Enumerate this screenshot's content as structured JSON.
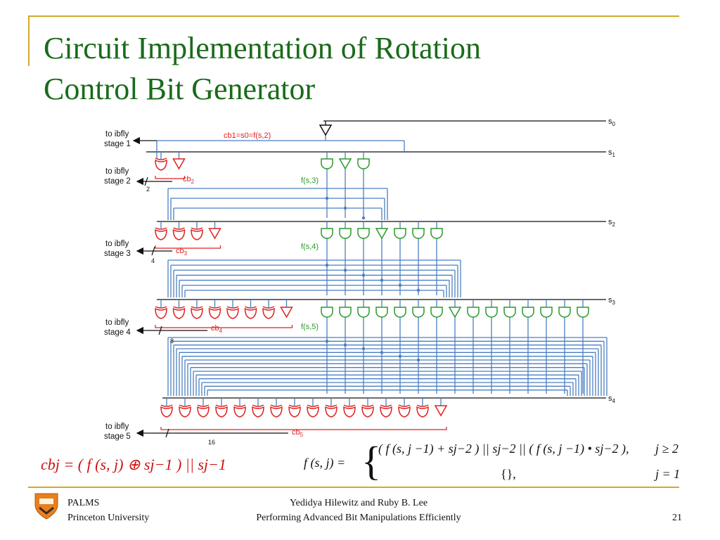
{
  "slide": {
    "title_line1": "Circuit Implementation of Rotation",
    "title_line2": "Control Bit Generator",
    "page_number": "21"
  },
  "footer": {
    "org_line1": "PALMS",
    "org_line2": "Princeton University",
    "author_line": "Yedidya Hilewitz and Ruby B. Lee",
    "talk_title": "Performing Advanced Bit Manipulations Efficiently"
  },
  "diagram": {
    "signals": [
      "s0",
      "s1",
      "s2",
      "s3",
      "s4"
    ],
    "stage_labels": [
      {
        "line1": "to ibfly",
        "line2": "stage 1"
      },
      {
        "line1": "to ibfly",
        "line2": "stage 2"
      },
      {
        "line1": "to ibfly",
        "line2": "stage 3"
      },
      {
        "line1": "to ibfly",
        "line2": "stage 4"
      },
      {
        "line1": "to ibfly",
        "line2": "stage 5"
      }
    ],
    "cb1_label": "cb1=s0=f(s,2)",
    "cb_labels": [
      "cb2",
      "cb3",
      "cb4",
      "cb5"
    ],
    "bus_widths": [
      "2",
      "4",
      "8",
      "16"
    ],
    "f_labels": [
      "f(s,3)",
      "f(s,4)",
      "f(s,5)"
    ],
    "colors": {
      "title": "#1a6b1a",
      "accent": "#d4a82c",
      "wire": "#4a7fc1",
      "xor_gate": "#e02020",
      "and_gate": "#2a9a2a",
      "formula_red": "#cc1111"
    }
  },
  "formulas": {
    "cb_formula": "cbj = ( f (s, j) ⊕ sj−1 ) || sj−1",
    "f_lhs": "f (s, j) =",
    "f_case1": "( f (s, j −1) + sj−2 ) || sj−2 || ( f (s, j −1) • sj−2 ),",
    "f_cond1": "j ≥ 2",
    "f_case2": "{},",
    "f_cond2": "j = 1"
  }
}
